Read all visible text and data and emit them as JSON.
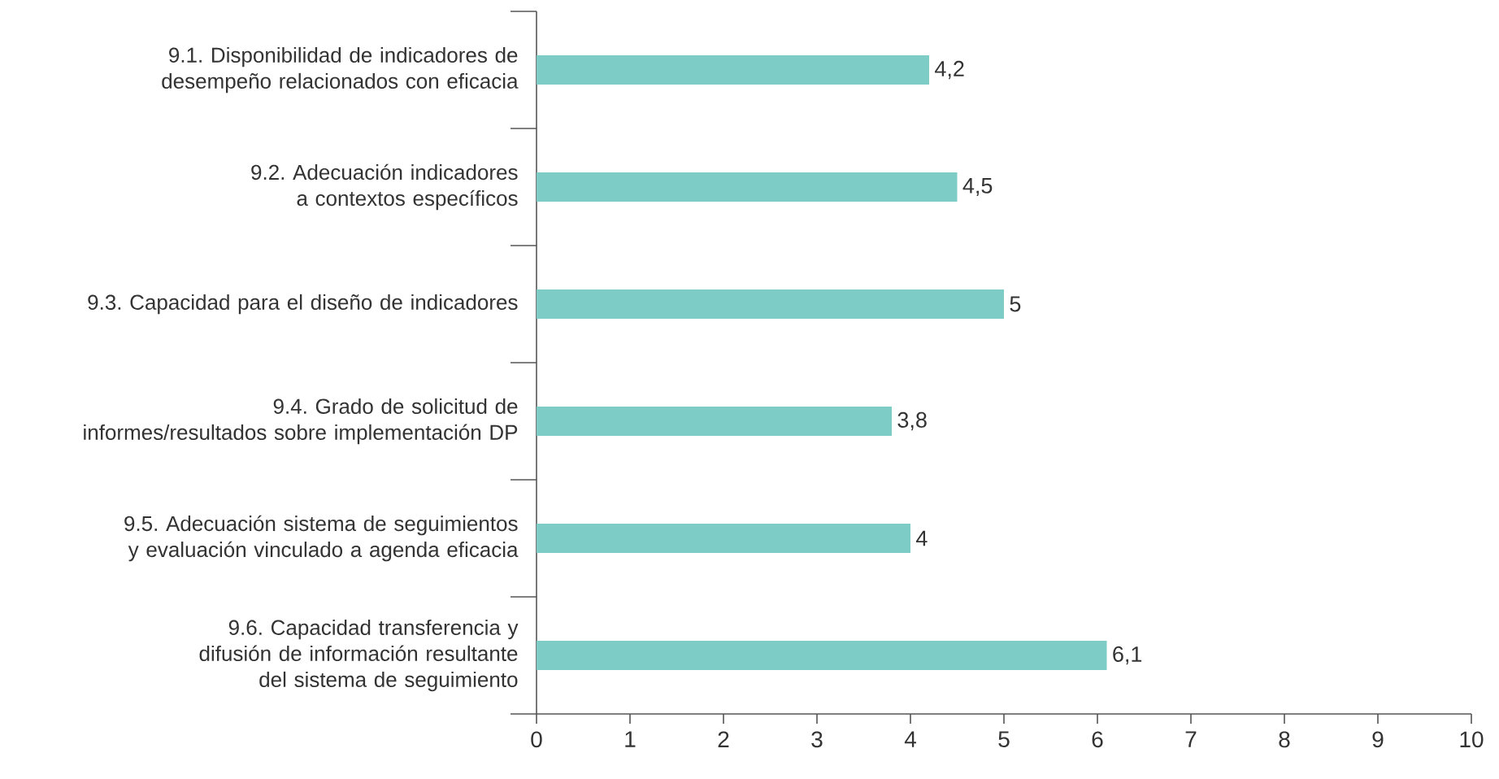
{
  "chart_data": {
    "type": "bar",
    "orientation": "horizontal",
    "categories": [
      "9.1. Disponibilidad de indicadores de desempeño relacionados con eficacia",
      "9.2. Adecuación indicadores a contextos específicos",
      "9.3. Capacidad para el diseño de indicadores",
      "9.4. Grado de solicitud de informes/resultados sobre implementación DP",
      "9.5. Adecuación sistema de seguimientos y evaluación vinculado a agenda eficacia",
      "9.6. Capacidad transferencia y difusión de información resultante del sistema de seguimiento"
    ],
    "values": [
      4.2,
      4.5,
      5,
      3.8,
      4,
      6.1
    ],
    "value_labels": [
      "4,2",
      "4,5",
      "5",
      "3,8",
      "4",
      "6,1"
    ],
    "color": "#7dcdc6",
    "xlim": [
      0,
      10
    ],
    "xticks": [
      0,
      1,
      2,
      3,
      4,
      5,
      6,
      7,
      8,
      9,
      10
    ]
  }
}
